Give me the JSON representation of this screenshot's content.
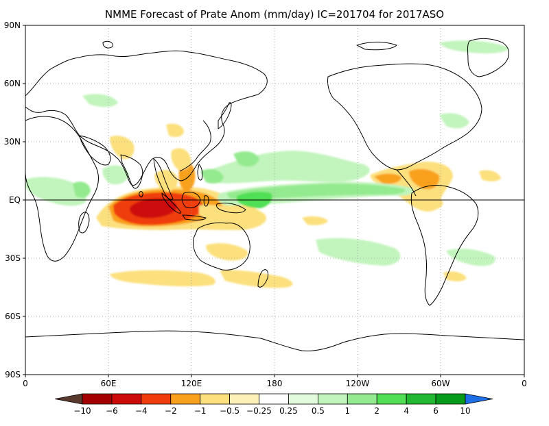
{
  "title": "NMME Forecast of Prate Anom (mm/day) IC=201704 for 2017ASO",
  "map": {
    "lat_labels": [
      "90N",
      "60N",
      "30N",
      "EQ",
      "30S",
      "60S",
      "90S"
    ],
    "lon_labels": [
      "0",
      "60E",
      "120E",
      "180",
      "120W",
      "60W",
      "0"
    ],
    "equator_line": true,
    "grid": "dotted"
  },
  "anomaly_regions": [
    {
      "name": "indian-ocean-dry-core",
      "sign": "dry",
      "level": "-4 to -6",
      "color": "#d62b0c"
    },
    {
      "name": "indian-ocean-dry",
      "sign": "dry",
      "level": "-2 to -4",
      "color": "#f26a1e"
    },
    {
      "name": "maritime-continent-dry",
      "sign": "dry",
      "level": "-1 to -2",
      "color": "#fba41e"
    },
    {
      "name": "south-indian-ocean-dry",
      "sign": "dry",
      "level": "-0.5 to -1",
      "color": "#fbd979"
    },
    {
      "name": "caribbean-northern-south-america-dry",
      "sign": "dry",
      "level": "-1 to -2",
      "color": "#fba41e"
    },
    {
      "name": "central-pacific-itcz-wet",
      "sign": "wet",
      "level": "1 to 2",
      "color": "#94ea8f"
    },
    {
      "name": "western-pacific-wet-core",
      "sign": "wet",
      "level": "2 to 4",
      "color": "#51e055"
    },
    {
      "name": "east-pacific-itcz-wet",
      "sign": "wet",
      "level": "0.5 to 1",
      "color": "#c2f4bd"
    }
  ],
  "colorbar": {
    "labels": [
      "−10",
      "−6",
      "−4",
      "−2",
      "−1",
      "−0.5",
      "−0.25",
      "0.25",
      "0.5",
      "1",
      "2",
      "4",
      "6",
      "10"
    ],
    "colors": [
      "#5b3a2e",
      "#a40000",
      "#cd0b0b",
      "#f03c0c",
      "#f9a11d",
      "#fce07e",
      "#fdf1b8",
      "#ffffff",
      "#e2fbdc",
      "#c2f4bd",
      "#94ea8f",
      "#51e055",
      "#22b832",
      "#069b1a",
      "#1e6fe6"
    ]
  }
}
